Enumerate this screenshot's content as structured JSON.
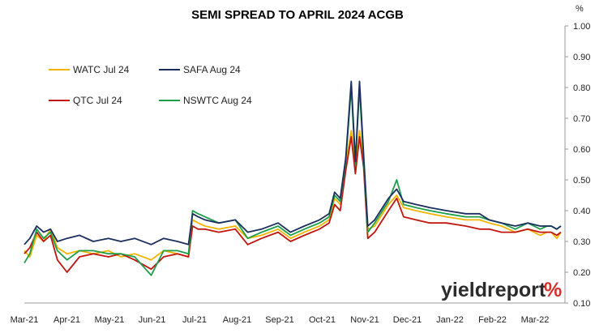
{
  "chart_data": {
    "type": "line",
    "title": "SEMI SPREAD TO APRIL 2024 ACGB",
    "y_unit": "%",
    "ylim": [
      0.1,
      1.0
    ],
    "y_ticks": [
      "1.00",
      "0.90",
      "0.80",
      "0.70",
      "0.60",
      "0.50",
      "0.40",
      "0.30",
      "0.20",
      "0.10"
    ],
    "x_ticks": [
      "Mar-21",
      "Apr-21",
      "May-21",
      "Jun-21",
      "Jul-21",
      "Aug-21",
      "Sep-21",
      "Oct-21",
      "Nov-21",
      "Dec-21",
      "Jan-22",
      "Feb-22",
      "Mar-22"
    ],
    "x_start": "2021-03-01",
    "x_end": "2022-03-28",
    "grid": false,
    "legend_position": "top-left",
    "series": [
      {
        "name": "WATC Jul 24",
        "color": "#f2b400",
        "dates": [
          "2021-03-01",
          "2021-03-05",
          "2021-03-10",
          "2021-03-15",
          "2021-03-20",
          "2021-03-25",
          "2021-04-01",
          "2021-04-10",
          "2021-04-20",
          "2021-05-01",
          "2021-05-10",
          "2021-05-20",
          "2021-06-01",
          "2021-06-10",
          "2021-06-20",
          "2021-06-28",
          "2021-07-01",
          "2021-07-05",
          "2021-07-10",
          "2021-07-20",
          "2021-08-01",
          "2021-08-10",
          "2021-08-20",
          "2021-09-01",
          "2021-09-10",
          "2021-09-20",
          "2021-10-01",
          "2021-10-08",
          "2021-10-12",
          "2021-10-16",
          "2021-10-20",
          "2021-10-24",
          "2021-10-27",
          "2021-10-30",
          "2021-11-02",
          "2021-11-05",
          "2021-11-10",
          "2021-11-20",
          "2021-11-26",
          "2021-12-01",
          "2021-12-10",
          "2021-12-20",
          "2022-01-01",
          "2022-01-15",
          "2022-01-25",
          "2022-02-01",
          "2022-02-10",
          "2022-02-20",
          "2022-03-01",
          "2022-03-10",
          "2022-03-15",
          "2022-03-18",
          "2022-03-22",
          "2022-03-25"
        ],
        "values": [
          0.27,
          0.25,
          0.32,
          0.3,
          0.34,
          0.28,
          0.26,
          0.27,
          0.26,
          0.27,
          0.25,
          0.26,
          0.24,
          0.27,
          0.26,
          0.25,
          0.37,
          0.36,
          0.35,
          0.34,
          0.35,
          0.31,
          0.32,
          0.34,
          0.31,
          0.33,
          0.35,
          0.37,
          0.44,
          0.42,
          0.55,
          0.66,
          0.54,
          0.66,
          0.56,
          0.34,
          0.35,
          0.42,
          0.45,
          0.41,
          0.4,
          0.39,
          0.38,
          0.37,
          0.37,
          0.36,
          0.35,
          0.33,
          0.34,
          0.32,
          0.33,
          0.33,
          0.31,
          0.33
        ]
      },
      {
        "name": "SAFA Aug 24",
        "color": "#1a2f5e",
        "dates": [
          "2021-03-01",
          "2021-03-05",
          "2021-03-10",
          "2021-03-15",
          "2021-03-20",
          "2021-03-25",
          "2021-04-01",
          "2021-04-10",
          "2021-04-20",
          "2021-05-01",
          "2021-05-10",
          "2021-05-20",
          "2021-06-01",
          "2021-06-10",
          "2021-06-20",
          "2021-06-28",
          "2021-07-01",
          "2021-07-05",
          "2021-07-10",
          "2021-07-20",
          "2021-08-01",
          "2021-08-10",
          "2021-08-20",
          "2021-09-01",
          "2021-09-10",
          "2021-09-20",
          "2021-10-01",
          "2021-10-08",
          "2021-10-12",
          "2021-10-16",
          "2021-10-20",
          "2021-10-24",
          "2021-10-27",
          "2021-10-30",
          "2021-11-02",
          "2021-11-05",
          "2021-11-10",
          "2021-11-20",
          "2021-11-26",
          "2021-12-01",
          "2021-12-10",
          "2021-12-20",
          "2022-01-01",
          "2022-01-15",
          "2022-01-25",
          "2022-02-01",
          "2022-02-10",
          "2022-02-20",
          "2022-03-01",
          "2022-03-10",
          "2022-03-15",
          "2022-03-18",
          "2022-03-22",
          "2022-03-25"
        ],
        "values": [
          0.29,
          0.31,
          0.35,
          0.33,
          0.34,
          0.3,
          0.31,
          0.32,
          0.3,
          0.31,
          0.3,
          0.31,
          0.29,
          0.31,
          0.3,
          0.29,
          0.39,
          0.38,
          0.37,
          0.36,
          0.37,
          0.33,
          0.34,
          0.36,
          0.33,
          0.35,
          0.37,
          0.39,
          0.46,
          0.44,
          0.57,
          0.82,
          0.56,
          0.82,
          0.58,
          0.35,
          0.37,
          0.44,
          0.47,
          0.43,
          0.42,
          0.41,
          0.4,
          0.39,
          0.39,
          0.37,
          0.36,
          0.35,
          0.36,
          0.35,
          0.35,
          0.35,
          0.34,
          0.35
        ]
      },
      {
        "name": "QTC Jul 24",
        "color": "#c0160f",
        "dates": [
          "2021-03-01",
          "2021-03-05",
          "2021-03-10",
          "2021-03-15",
          "2021-03-20",
          "2021-03-25",
          "2021-04-01",
          "2021-04-10",
          "2021-04-20",
          "2021-05-01",
          "2021-05-10",
          "2021-05-20",
          "2021-06-01",
          "2021-06-10",
          "2021-06-20",
          "2021-06-28",
          "2021-07-01",
          "2021-07-05",
          "2021-07-10",
          "2021-07-20",
          "2021-08-01",
          "2021-08-10",
          "2021-08-20",
          "2021-09-01",
          "2021-09-10",
          "2021-09-20",
          "2021-10-01",
          "2021-10-08",
          "2021-10-12",
          "2021-10-16",
          "2021-10-20",
          "2021-10-24",
          "2021-10-27",
          "2021-10-30",
          "2021-11-02",
          "2021-11-05",
          "2021-11-10",
          "2021-11-20",
          "2021-11-26",
          "2021-12-01",
          "2021-12-10",
          "2021-12-20",
          "2022-01-01",
          "2022-01-15",
          "2022-01-25",
          "2022-02-01",
          "2022-02-10",
          "2022-02-20",
          "2022-03-01",
          "2022-03-10",
          "2022-03-15",
          "2022-03-18",
          "2022-03-22",
          "2022-03-25"
        ],
        "values": [
          0.26,
          0.28,
          0.33,
          0.3,
          0.32,
          0.24,
          0.2,
          0.25,
          0.26,
          0.25,
          0.26,
          0.24,
          0.21,
          0.25,
          0.26,
          0.25,
          0.35,
          0.34,
          0.34,
          0.33,
          0.34,
          0.29,
          0.31,
          0.33,
          0.3,
          0.32,
          0.34,
          0.36,
          0.42,
          0.4,
          0.53,
          0.64,
          0.52,
          0.64,
          0.54,
          0.31,
          0.33,
          0.4,
          0.44,
          0.38,
          0.37,
          0.36,
          0.36,
          0.35,
          0.34,
          0.34,
          0.33,
          0.33,
          0.34,
          0.33,
          0.33,
          0.33,
          0.32,
          0.33
        ]
      },
      {
        "name": "NSWTC Aug 24",
        "color": "#1f9e4a",
        "dates": [
          "2021-03-01",
          "2021-03-05",
          "2021-03-10",
          "2021-03-15",
          "2021-03-20",
          "2021-03-25",
          "2021-04-01",
          "2021-04-10",
          "2021-04-20",
          "2021-05-01",
          "2021-05-10",
          "2021-05-20",
          "2021-06-01",
          "2021-06-10",
          "2021-06-20",
          "2021-06-28",
          "2021-07-01",
          "2021-07-05",
          "2021-07-10",
          "2021-07-20",
          "2021-08-01",
          "2021-08-10",
          "2021-08-20",
          "2021-09-01",
          "2021-09-10",
          "2021-09-20",
          "2021-10-01",
          "2021-10-08",
          "2021-10-12",
          "2021-10-16",
          "2021-10-20",
          "2021-10-24",
          "2021-10-27",
          "2021-10-30",
          "2021-11-02",
          "2021-11-05",
          "2021-11-10",
          "2021-11-20",
          "2021-11-26",
          "2021-12-01",
          "2021-12-10",
          "2021-12-20",
          "2022-01-01",
          "2022-01-15",
          "2022-01-25",
          "2022-02-01",
          "2022-02-10",
          "2022-02-20",
          "2022-03-01",
          "2022-03-10",
          "2022-03-15",
          "2022-03-18",
          "2022-03-22",
          "2022-03-25"
        ],
        "values": [
          0.23,
          0.26,
          0.34,
          0.31,
          0.33,
          0.27,
          0.24,
          0.27,
          0.27,
          0.26,
          0.26,
          0.25,
          0.19,
          0.27,
          0.27,
          0.26,
          0.4,
          0.39,
          0.38,
          0.36,
          0.37,
          0.31,
          0.33,
          0.35,
          0.32,
          0.34,
          0.36,
          0.38,
          0.45,
          0.43,
          0.56,
          0.8,
          0.55,
          0.8,
          0.56,
          0.33,
          0.36,
          0.43,
          0.5,
          0.42,
          0.41,
          0.4,
          0.39,
          0.38,
          0.38,
          0.37,
          0.36,
          0.34,
          0.36,
          0.34,
          0.35,
          0.35,
          0.34,
          0.35
        ]
      }
    ]
  },
  "watermark": {
    "brand": "yieldreport",
    "symbol": "%"
  }
}
